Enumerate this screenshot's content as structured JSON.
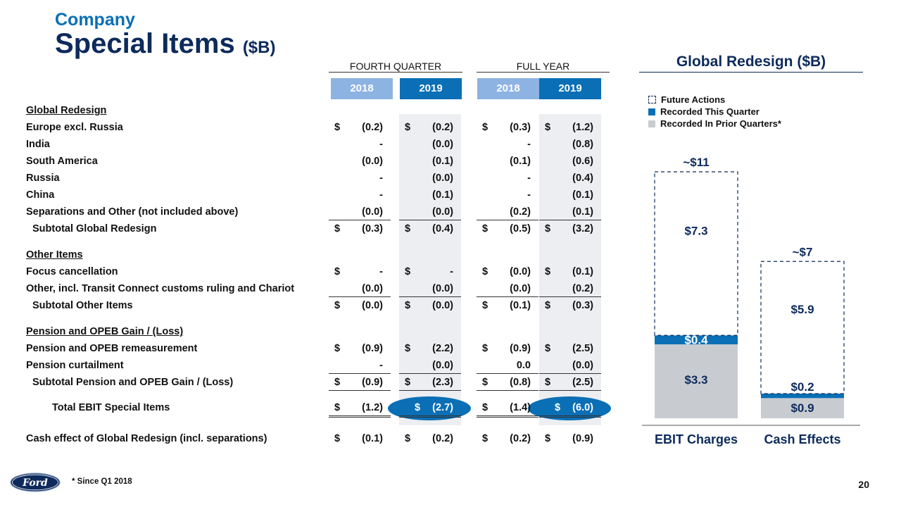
{
  "header": {
    "company": "Company",
    "title": "Special Items",
    "title_unit": "($B)"
  },
  "table": {
    "groups": [
      {
        "label": "FOURTH QUARTER"
      },
      {
        "label": "FULL YEAR"
      }
    ],
    "years": [
      "2018",
      "2019",
      "2018",
      "2019"
    ],
    "rows": [
      {
        "label": "Global Redesign",
        "style": "section"
      },
      {
        "label": "Europe excl. Russia",
        "values": [
          "(0.2)",
          "(0.2)",
          "(0.3)",
          "(1.2)"
        ],
        "cur": true
      },
      {
        "label": "India",
        "values": [
          "-",
          "(0.0)",
          "-",
          "(0.8)"
        ]
      },
      {
        "label": "South America",
        "values": [
          "(0.0)",
          "(0.1)",
          "(0.1)",
          "(0.6)"
        ]
      },
      {
        "label": "Russia",
        "values": [
          "-",
          "(0.0)",
          "-",
          "(0.4)"
        ]
      },
      {
        "label": "China",
        "values": [
          "-",
          "(0.1)",
          "-",
          "(0.1)"
        ]
      },
      {
        "label": "Separations and Other (not included above)",
        "values": [
          "(0.0)",
          "(0.0)",
          "(0.2)",
          "(0.1)"
        ],
        "underline": true
      },
      {
        "label": "Subtotal Global Redesign",
        "values": [
          "(0.3)",
          "(0.4)",
          "(0.5)",
          "(3.2)"
        ],
        "cur": true,
        "style": "ind1"
      },
      {
        "label": "Other Items",
        "style": "section"
      },
      {
        "label": "Focus cancellation",
        "values": [
          "-",
          "-",
          "(0.0)",
          "(0.1)"
        ],
        "cur": true
      },
      {
        "label": "Other, incl. Transit Connect customs ruling and Chariot",
        "values": [
          "(0.0)",
          "(0.0)",
          "(0.0)",
          "(0.2)"
        ],
        "underline": true
      },
      {
        "label": "Subtotal Other Items",
        "values": [
          "(0.0)",
          "(0.0)",
          "(0.1)",
          "(0.3)"
        ],
        "cur": true,
        "style": "ind1"
      },
      {
        "label": "Pension and OPEB Gain / (Loss)",
        "style": "section"
      },
      {
        "label": "Pension and OPEB remeasurement",
        "values": [
          "(0.9)",
          "(2.2)",
          "(0.9)",
          "(2.5)"
        ],
        "cur": true
      },
      {
        "label": "Pension curtailment",
        "values": [
          "-",
          "(0.0)",
          "0.0",
          "(0.0)"
        ],
        "underline": true
      },
      {
        "label": "Subtotal Pension and OPEB Gain / (Loss)",
        "values": [
          "(0.9)",
          "(2.3)",
          "(0.8)",
          "(2.5)"
        ],
        "cur": true,
        "style": "ind1",
        "underline": true
      },
      {
        "label": "Total EBIT Special Items",
        "values": [
          "(1.2)",
          "(2.7)",
          "(1.4)",
          "(6.0)"
        ],
        "cur": true,
        "style": "ind2",
        "double": true,
        "highlight": [
          1,
          3
        ]
      },
      {
        "label": "Cash effect of Global Redesign (incl. separations)",
        "values": [
          "(0.1)",
          "(0.2)",
          "(0.2)",
          "(0.9)"
        ],
        "cur": true
      }
    ],
    "currency_symbol": "$"
  },
  "chart": {
    "title": "Global Redesign ($B)",
    "legend": [
      {
        "label": "Future Actions",
        "swatch": "dashed"
      },
      {
        "label": "Recorded This Quarter",
        "color": "#0a6fb5"
      },
      {
        "label": "Recorded In Prior Quarters*",
        "color": "#c8ccd1"
      }
    ],
    "colors": {
      "future": "#ffffff",
      "this_quarter": "#0a6fb5",
      "prior": "#c8ccd1"
    }
  },
  "chart_data": {
    "type": "bar",
    "stacked": true,
    "title": "Global Redesign ($B)",
    "categories": [
      "EBIT Charges",
      "Cash Effects"
    ],
    "series": [
      {
        "name": "Recorded In Prior Quarters*",
        "values": [
          3.3,
          0.9
        ],
        "labels": [
          "$3.3",
          "$0.9"
        ]
      },
      {
        "name": "Recorded This Quarter",
        "values": [
          0.4,
          0.2
        ],
        "labels": [
          "$0.4",
          "$0.2"
        ]
      },
      {
        "name": "Future Actions",
        "values": [
          7.3,
          5.9
        ],
        "labels": [
          "$7.3",
          "$5.9"
        ]
      }
    ],
    "totals": [
      "~$11",
      "~$7"
    ],
    "ylim": [
      0,
      11
    ],
    "legend_position": "top-left"
  },
  "footer": {
    "footnote": "*  Since Q1 2018",
    "page": "20",
    "logo_text": "Ford"
  }
}
